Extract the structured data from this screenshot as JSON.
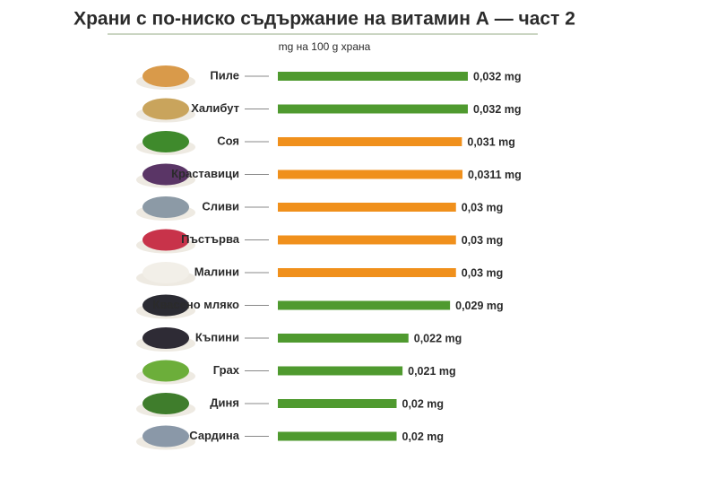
{
  "chart_data": {
    "type": "bar",
    "orientation": "horizontal",
    "title": "Храни с по-ниско съдържание на витамин А — част 2",
    "subtitle": "mg на 100 g храна",
    "categories": [
      "Пиле",
      "Халибут",
      "Соя",
      "Краставици",
      "Сливи",
      "Пъстърва",
      "Малини",
      "Квасено мляко",
      "Къпини",
      "Грах",
      "Диня",
      "Сардина"
    ],
    "values": [
      0.032,
      0.032,
      0.031,
      0.0311,
      0.03,
      0.03,
      0.03,
      0.029,
      0.022,
      0.021,
      0.02,
      0.02
    ],
    "value_labels": [
      "0,032 mg",
      "0,032 mg",
      "0,031 mg",
      "0,0311 mg",
      "0,03 mg",
      "0,03 mg",
      "0,03 mg",
      "0,029 mg",
      "0,022 mg",
      "0,021 mg",
      "0,02 mg",
      "0,02 mg"
    ],
    "colors": [
      "#4f9a2f",
      "#4f9a2f",
      "#f0901c",
      "#f0901c",
      "#f0901c",
      "#f0901c",
      "#f0901c",
      "#4f9a2f",
      "#4f9a2f",
      "#4f9a2f",
      "#4f9a2f",
      "#4f9a2f"
    ]
  }
}
